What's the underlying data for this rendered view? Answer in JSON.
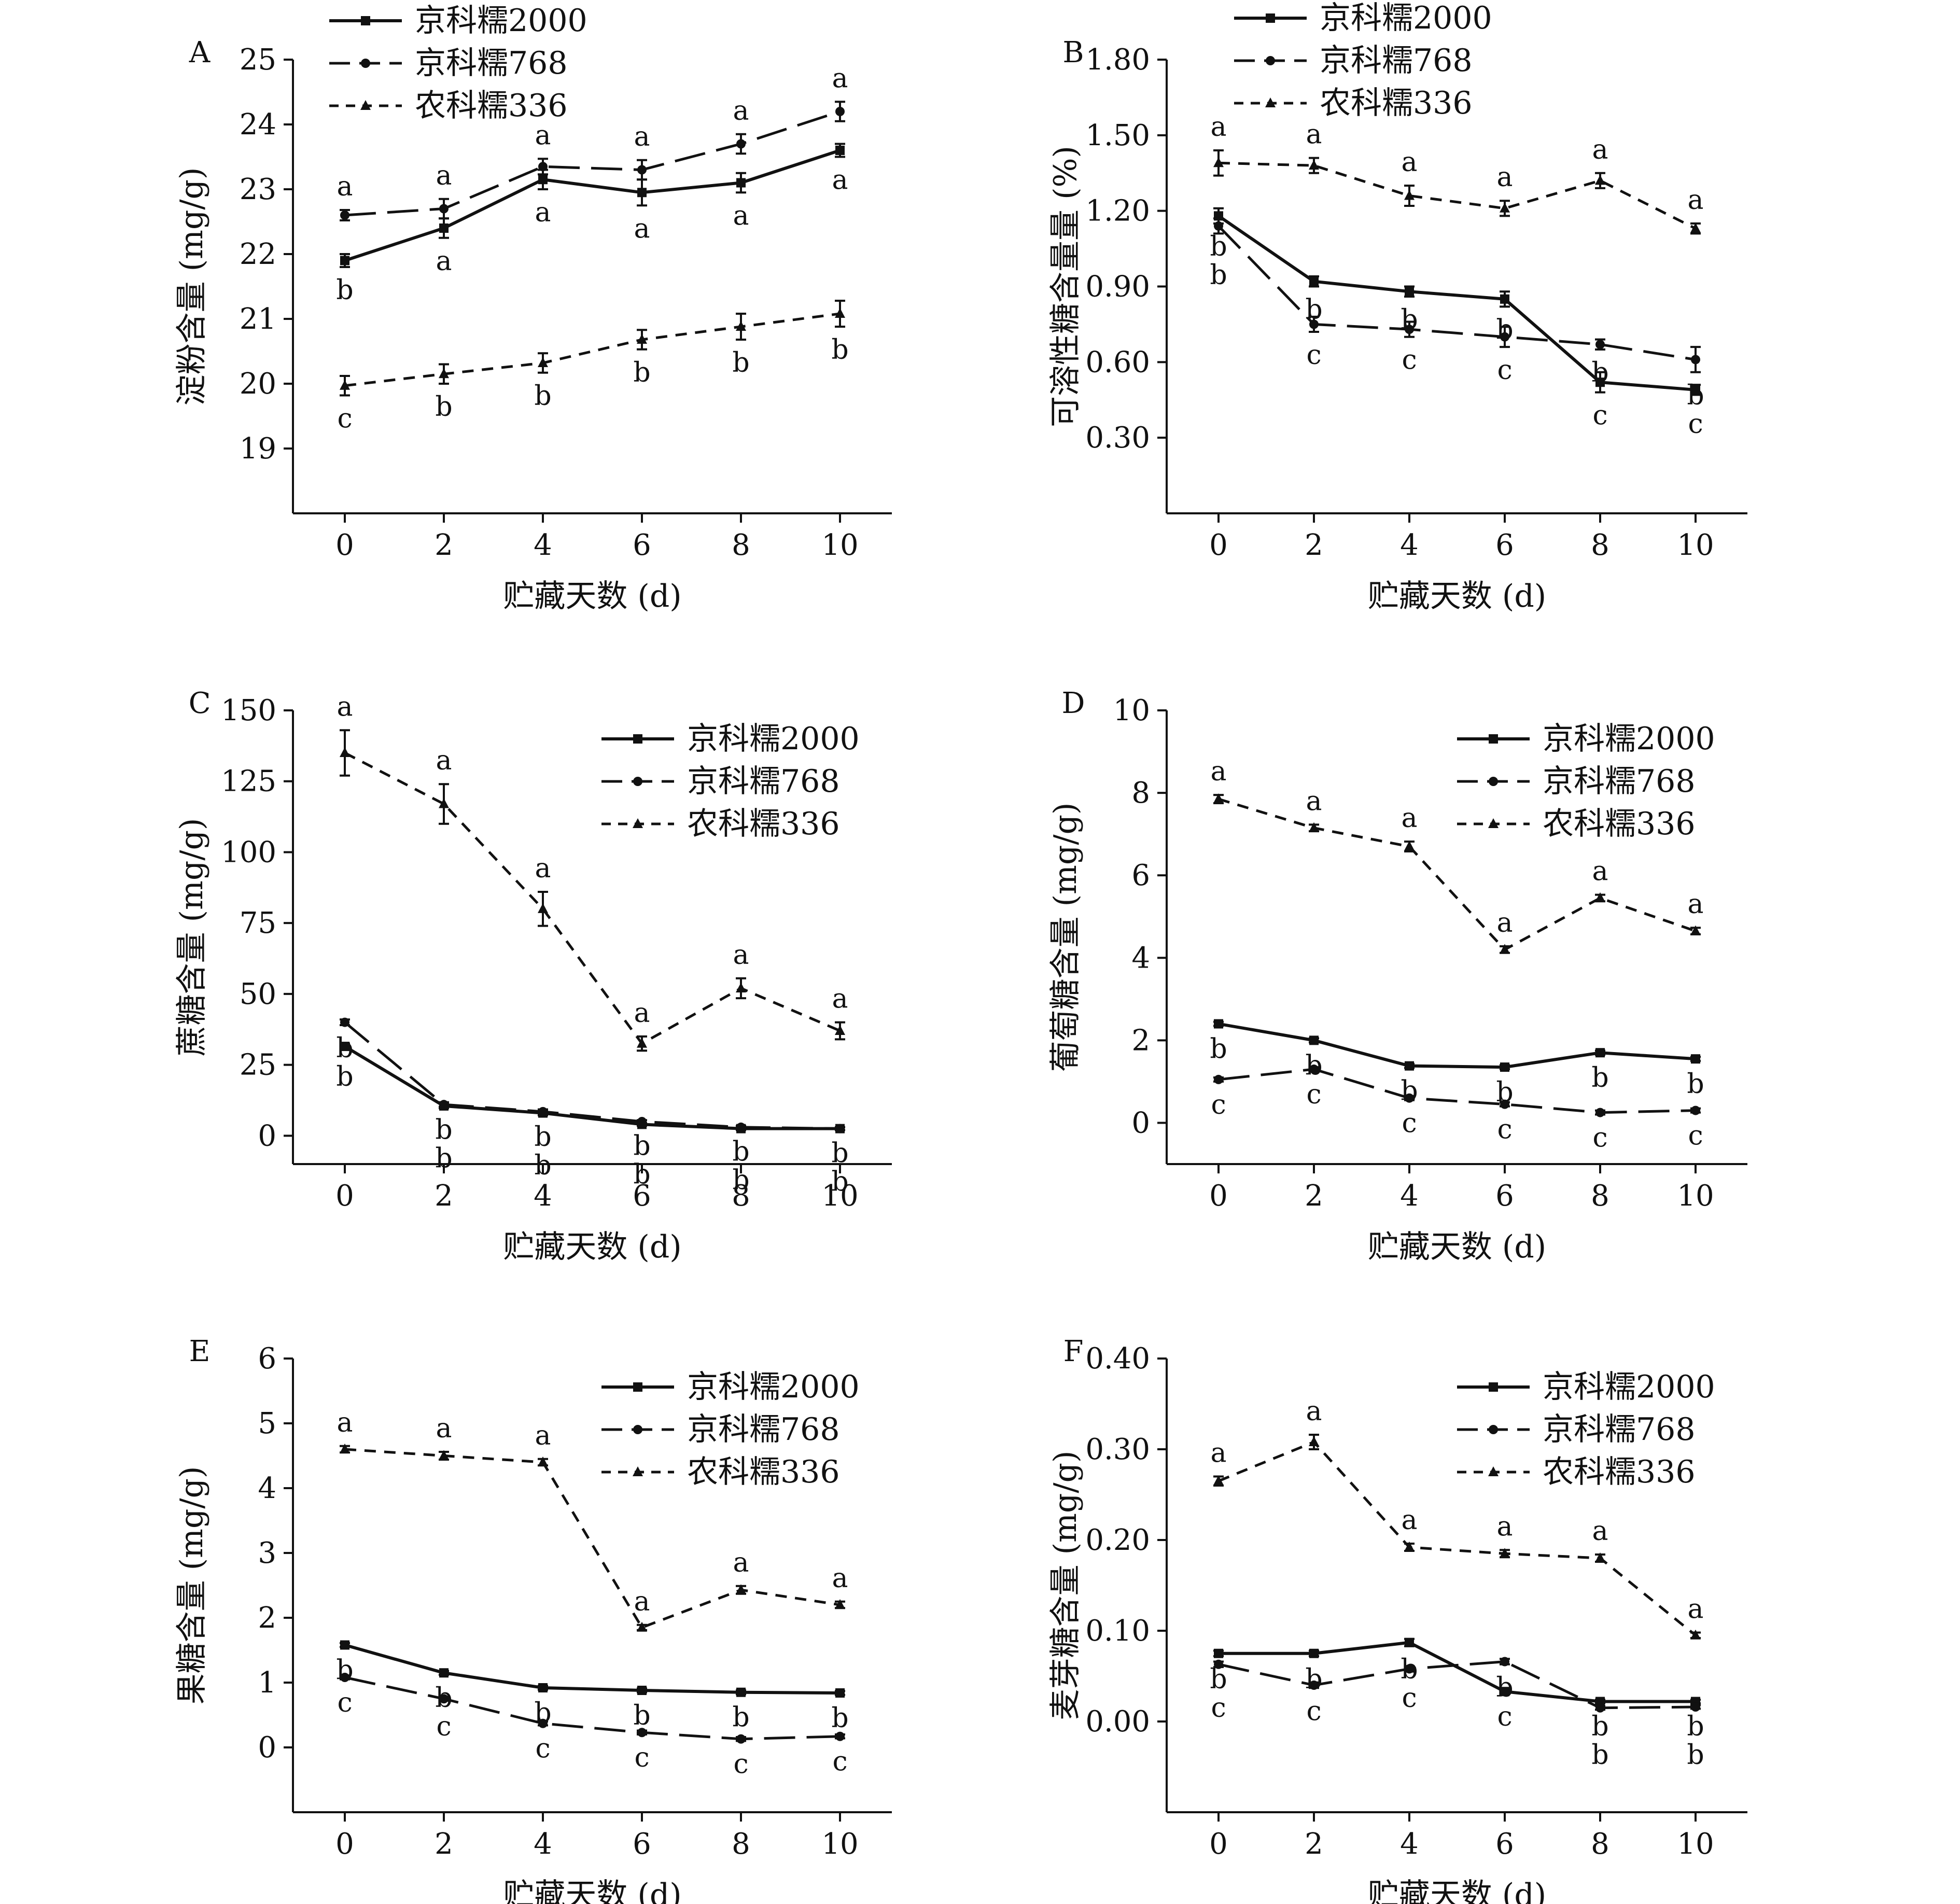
{
  "chart_data": [
    {
      "panel": "A",
      "type": "line",
      "xlabel": "贮藏天数 (d)",
      "ylabel": "淀粉含量 (mg/g)",
      "x": [
        0,
        2,
        4,
        6,
        8,
        10
      ],
      "ylim": [
        18,
        25
      ],
      "yticks": [
        "19",
        "20",
        "21",
        "22",
        "23",
        "24",
        "25"
      ],
      "legend_position": "top-left",
      "series": [
        {
          "name": "京科糯2000",
          "values": [
            21.9,
            22.4,
            23.15,
            22.95,
            23.1,
            23.6
          ],
          "err": [
            0.1,
            0.15,
            0.15,
            0.2,
            0.15,
            0.1
          ],
          "letters": [
            "b",
            "a",
            "a",
            "a",
            "a",
            "a"
          ]
        },
        {
          "name": "京科糯768",
          "values": [
            22.6,
            22.7,
            23.35,
            23.3,
            23.7,
            24.2
          ],
          "err": [
            0.08,
            0.15,
            0.12,
            0.15,
            0.15,
            0.15
          ],
          "letters": [
            "a",
            "a",
            "a",
            "a",
            "a",
            "a"
          ]
        },
        {
          "name": "农科糯336",
          "values": [
            19.97,
            20.15,
            20.32,
            20.68,
            20.88,
            21.08
          ],
          "err": [
            0.15,
            0.15,
            0.15,
            0.15,
            0.2,
            0.2
          ],
          "letters": [
            "c",
            "b",
            "b",
            "b",
            "b",
            "b"
          ]
        }
      ]
    },
    {
      "panel": "B",
      "type": "line",
      "xlabel": "贮藏天数 (d)",
      "ylabel": "可溶性糖含量量 (%)",
      "x": [
        0,
        2,
        4,
        6,
        8,
        10
      ],
      "ylim": [
        0,
        1.8
      ],
      "yticks": [
        "0.30",
        "0.60",
        "0.90",
        "1.20",
        "1.50",
        "1.80"
      ],
      "legend_position": "top-center",
      "series": [
        {
          "name": "京科糯2000",
          "values": [
            1.18,
            0.92,
            0.88,
            0.85,
            0.52,
            0.49
          ],
          "err": [
            0.03,
            0.02,
            0.02,
            0.03,
            0.04,
            0.02
          ],
          "letters": [
            "b",
            "b",
            "b",
            "b",
            "c",
            "c"
          ]
        },
        {
          "name": "京科糯768",
          "values": [
            1.14,
            0.75,
            0.73,
            0.7,
            0.67,
            0.61
          ],
          "err": [
            0.03,
            0.03,
            0.03,
            0.04,
            0.02,
            0.05
          ],
          "letters": [
            "b",
            "c",
            "c",
            "c",
            "b",
            "b"
          ]
        },
        {
          "name": "农科糯336",
          "values": [
            1.39,
            1.38,
            1.26,
            1.21,
            1.32,
            1.13
          ],
          "err": [
            0.05,
            0.03,
            0.04,
            0.03,
            0.03,
            0.02
          ],
          "letters": [
            "a",
            "a",
            "a",
            "a",
            "a",
            "a"
          ]
        }
      ]
    },
    {
      "panel": "C",
      "type": "line",
      "xlabel": "贮藏天数 (d)",
      "ylabel": "蔗糖含量 (mg/g)",
      "x": [
        0,
        2,
        4,
        6,
        8,
        10
      ],
      "ylim": [
        -10,
        150
      ],
      "yticks": [
        "0",
        "25",
        "50",
        "75",
        "100",
        "125",
        "150"
      ],
      "legend_position": "top-right",
      "series": [
        {
          "name": "京科糯2000",
          "values": [
            31.5,
            10.5,
            8.0,
            4.0,
            2.5,
            2.5
          ],
          "err": [
            1.0,
            0.8,
            0.8,
            0.5,
            0.5,
            0.5
          ],
          "letters": [
            "b",
            "b",
            "b",
            "b",
            "b",
            "b"
          ]
        },
        {
          "name": "京科糯768",
          "values": [
            40.0,
            11.0,
            8.5,
            5.0,
            3.0,
            2.5
          ],
          "err": [
            1.0,
            0.8,
            0.8,
            0.5,
            0.5,
            0.5
          ],
          "letters": [
            "b",
            "b",
            "b",
            "b",
            "b",
            "b"
          ]
        },
        {
          "name": "农科糯336",
          "values": [
            135.0,
            117.0,
            80.0,
            32.5,
            52.0,
            37.0
          ],
          "err": [
            8.0,
            7.0,
            6.0,
            2.5,
            3.5,
            3.0
          ],
          "letters": [
            "a",
            "a",
            "a",
            "a",
            "a",
            "a"
          ]
        }
      ]
    },
    {
      "panel": "D",
      "type": "line",
      "xlabel": "贮藏天数 (d)",
      "ylabel": "葡萄糖含量 (mg/g)",
      "x": [
        0,
        2,
        4,
        6,
        8,
        10
      ],
      "ylim": [
        -1,
        10
      ],
      "yticks": [
        "0",
        "2",
        "4",
        "6",
        "8",
        "10"
      ],
      "legend_position": "top-right",
      "series": [
        {
          "name": "京科糯2000",
          "values": [
            2.4,
            2.0,
            1.38,
            1.35,
            1.7,
            1.55
          ],
          "err": [
            0.05,
            0.05,
            0.05,
            0.05,
            0.05,
            0.05
          ],
          "letters": [
            "b",
            "b",
            "b",
            "b",
            "b",
            "b"
          ]
        },
        {
          "name": "京科糯768",
          "values": [
            1.05,
            1.3,
            0.6,
            0.45,
            0.25,
            0.3
          ],
          "err": [
            0.05,
            0.05,
            0.05,
            0.05,
            0.05,
            0.05
          ],
          "letters": [
            "c",
            "c",
            "c",
            "c",
            "c",
            "c"
          ]
        },
        {
          "name": "农科糯336",
          "values": [
            7.85,
            7.15,
            6.7,
            4.2,
            5.45,
            4.65
          ],
          "err": [
            0.1,
            0.08,
            0.12,
            0.08,
            0.08,
            0.08
          ],
          "letters": [
            "a",
            "a",
            "a",
            "a",
            "a",
            "a"
          ]
        }
      ]
    },
    {
      "panel": "E",
      "type": "line",
      "xlabel": "贮藏天数 (d)",
      "ylabel": "果糖含量 (mg/g)",
      "x": [
        0,
        2,
        4,
        6,
        8,
        10
      ],
      "ylim": [
        -1,
        6
      ],
      "yticks": [
        "0",
        "1",
        "2",
        "3",
        "4",
        "5",
        "6"
      ],
      "legend_position": "top-right",
      "series": [
        {
          "name": "京科糯2000",
          "values": [
            1.58,
            1.15,
            0.92,
            0.88,
            0.85,
            0.84
          ],
          "err": [
            0.03,
            0.03,
            0.03,
            0.03,
            0.03,
            0.03
          ],
          "letters": [
            "b",
            "b",
            "b",
            "b",
            "b",
            "b"
          ]
        },
        {
          "name": "京科糯768",
          "values": [
            1.08,
            0.75,
            0.37,
            0.23,
            0.13,
            0.17
          ],
          "err": [
            0.03,
            0.03,
            0.03,
            0.03,
            0.03,
            0.03
          ],
          "letters": [
            "c",
            "c",
            "c",
            "c",
            "c",
            "c"
          ]
        },
        {
          "name": "农科糯336",
          "values": [
            4.6,
            4.5,
            4.4,
            1.85,
            2.43,
            2.2
          ],
          "err": [
            0.05,
            0.06,
            0.05,
            0.04,
            0.06,
            0.05
          ],
          "letters": [
            "a",
            "a",
            "a",
            "a",
            "a",
            "a"
          ]
        }
      ]
    },
    {
      "panel": "F",
      "type": "line",
      "xlabel": "贮藏天数 (d)",
      "ylabel": "麦芽糖含量 (mg/g)",
      "x": [
        0,
        2,
        4,
        6,
        8,
        10
      ],
      "ylim": [
        -0.1,
        0.4
      ],
      "yticks": [
        "0.00",
        "0.10",
        "0.20",
        "0.30",
        "0.40"
      ],
      "legend_position": "top-right",
      "series": [
        {
          "name": "京科糯2000",
          "values": [
            0.075,
            0.075,
            0.087,
            0.033,
            0.022,
            0.022
          ],
          "err": [
            0.003,
            0.003,
            0.004,
            0.002,
            0.002,
            0.002
          ],
          "letters": [
            "b",
            "b",
            "b",
            "c",
            "b",
            "b"
          ]
        },
        {
          "name": "京科糯768",
          "values": [
            0.063,
            0.04,
            0.058,
            0.066,
            0.015,
            0.016
          ],
          "err": [
            0.003,
            0.003,
            0.003,
            0.003,
            0.002,
            0.002
          ],
          "letters": [
            "c",
            "c",
            "c",
            "b",
            "b",
            "b"
          ]
        },
        {
          "name": "农科糯336",
          "values": [
            0.265,
            0.308,
            0.192,
            0.185,
            0.18,
            0.095
          ],
          "err": [
            0.005,
            0.008,
            0.004,
            0.004,
            0.004,
            0.003
          ],
          "letters": [
            "a",
            "a",
            "a",
            "a",
            "a",
            "a"
          ]
        }
      ]
    }
  ]
}
